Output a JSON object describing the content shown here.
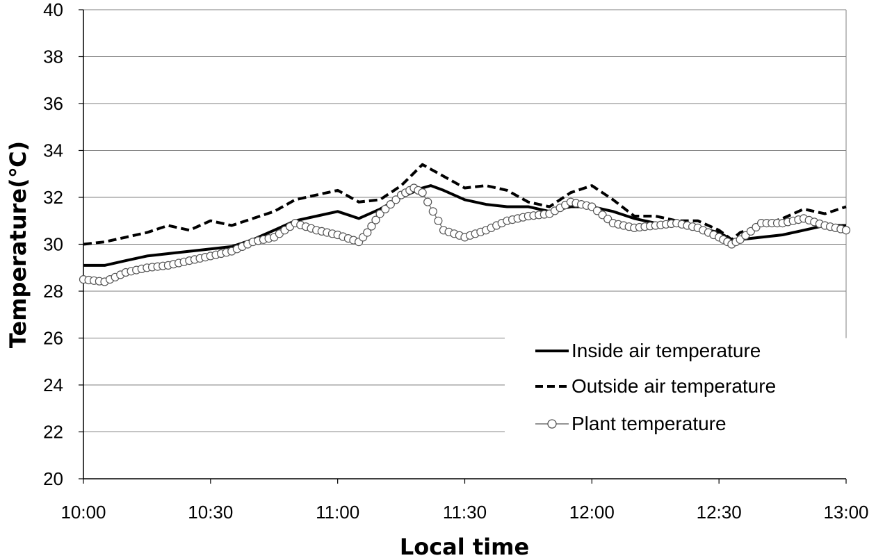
{
  "chart_data": {
    "type": "line",
    "title": "",
    "xlabel": "Local time",
    "ylabel": "Temperature(℃)",
    "ylim": [
      20,
      40
    ],
    "yticks": [
      20,
      22,
      24,
      26,
      28,
      30,
      32,
      34,
      36,
      38,
      40
    ],
    "xlim_minutes": [
      0,
      180
    ],
    "xticks": [
      "10:00",
      "10:30",
      "11:00",
      "11:30",
      "12:00",
      "12:30",
      "13:00"
    ],
    "grid": "horizontal",
    "legend_position": "lower-right",
    "series": [
      {
        "name": "Inside air temperature",
        "style": "solid",
        "color": "#000000",
        "x": [
          "10:00",
          "10:05",
          "10:10",
          "10:15",
          "10:20",
          "10:25",
          "10:30",
          "10:35",
          "10:40",
          "10:45",
          "10:50",
          "10:55",
          "11:00",
          "11:05",
          "11:10",
          "11:15",
          "11:20",
          "11:22",
          "11:25",
          "11:30",
          "11:35",
          "11:40",
          "11:45",
          "11:50",
          "11:55",
          "12:00",
          "12:05",
          "12:10",
          "12:15",
          "12:20",
          "12:25",
          "12:30",
          "12:33",
          "12:35",
          "12:40",
          "12:45",
          "12:50",
          "12:55",
          "13:00"
        ],
        "values": [
          29.1,
          29.1,
          29.3,
          29.5,
          29.6,
          29.7,
          29.8,
          29.9,
          30.2,
          30.6,
          31.0,
          31.2,
          31.4,
          31.1,
          31.5,
          32.0,
          32.4,
          32.5,
          32.3,
          31.9,
          31.7,
          31.6,
          31.6,
          31.4,
          31.6,
          31.6,
          31.4,
          31.1,
          30.9,
          30.8,
          30.7,
          30.5,
          30.2,
          30.2,
          30.3,
          30.4,
          30.6,
          30.8,
          30.8
        ]
      },
      {
        "name": "Outside air temperature",
        "style": "dashed",
        "color": "#000000",
        "x": [
          "10:00",
          "10:05",
          "10:10",
          "10:15",
          "10:20",
          "10:25",
          "10:30",
          "10:35",
          "10:40",
          "10:45",
          "10:50",
          "10:55",
          "11:00",
          "11:05",
          "11:10",
          "11:15",
          "11:20",
          "11:25",
          "11:30",
          "11:35",
          "11:40",
          "11:45",
          "11:50",
          "11:55",
          "12:00",
          "12:05",
          "12:10",
          "12:15",
          "12:20",
          "12:25",
          "12:30",
          "12:33",
          "12:35",
          "12:40",
          "12:45",
          "12:50",
          "12:55",
          "13:00"
        ],
        "values": [
          30.0,
          30.1,
          30.3,
          30.5,
          30.8,
          30.6,
          31.0,
          30.8,
          31.1,
          31.4,
          31.9,
          32.1,
          32.3,
          31.8,
          31.9,
          32.5,
          33.4,
          32.9,
          32.4,
          32.5,
          32.3,
          31.8,
          31.6,
          32.2,
          32.5,
          31.9,
          31.2,
          31.2,
          31.0,
          31.0,
          30.6,
          30.2,
          30.5,
          30.8,
          31.1,
          31.5,
          31.3,
          31.6
        ]
      },
      {
        "name": "Plant temperature",
        "style": "circles",
        "color": "#000000",
        "x": [
          "10:00",
          "10:05",
          "10:10",
          "10:15",
          "10:20",
          "10:25",
          "10:30",
          "10:35",
          "10:40",
          "10:45",
          "10:50",
          "10:55",
          "11:00",
          "11:05",
          "11:07",
          "11:10",
          "11:15",
          "11:18",
          "11:20",
          "11:25",
          "11:30",
          "11:35",
          "11:40",
          "11:45",
          "11:50",
          "11:55",
          "12:00",
          "12:05",
          "12:10",
          "12:15",
          "12:20",
          "12:25",
          "12:30",
          "12:33",
          "12:35",
          "12:40",
          "12:45",
          "12:50",
          "12:55",
          "13:00"
        ],
        "values": [
          28.5,
          28.4,
          28.8,
          29.0,
          29.1,
          29.3,
          29.5,
          29.7,
          30.1,
          30.3,
          30.9,
          30.6,
          30.4,
          30.1,
          30.5,
          31.3,
          32.1,
          32.4,
          32.2,
          30.6,
          30.3,
          30.6,
          31.0,
          31.2,
          31.3,
          31.8,
          31.6,
          30.9,
          30.7,
          30.8,
          30.9,
          30.7,
          30.3,
          30.0,
          30.2,
          30.9,
          30.9,
          31.1,
          30.8,
          30.6
        ]
      }
    ]
  }
}
